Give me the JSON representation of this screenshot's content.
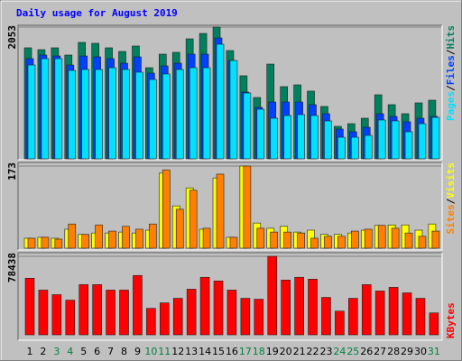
{
  "title": "Daily usage for August 2019",
  "categories": [
    "1",
    "2",
    "3",
    "4",
    "5",
    "6",
    "7",
    "8",
    "9",
    "10",
    "11",
    "12",
    "13",
    "14",
    "15",
    "16",
    "17",
    "18",
    "19",
    "20",
    "21",
    "22",
    "23",
    "24",
    "25",
    "26",
    "27",
    "28",
    "29",
    "30",
    "31"
  ],
  "category_colors": [
    "#000000",
    "#000000",
    "#008040",
    "#008040",
    "#000000",
    "#000000",
    "#000000",
    "#000000",
    "#000000",
    "#008040",
    "#008040",
    "#000000",
    "#000000",
    "#000000",
    "#000000",
    "#000000",
    "#008040",
    "#008040",
    "#000000",
    "#000000",
    "#000000",
    "#000000",
    "#000000",
    "#008040",
    "#008040",
    "#000000",
    "#000000",
    "#000000",
    "#000000",
    "#000000",
    "#008040"
  ],
  "chart_data": [
    {
      "type": "bar",
      "legend_separator": "/",
      "ylim": [
        0,
        2053
      ],
      "yticks": [
        2053
      ],
      "series": [
        {
          "name": "Hits",
          "color": "#00805c",
          "values": [
            1730,
            1701,
            1730,
            1617,
            1814,
            1800,
            1730,
            1673,
            1758,
            1420,
            1631,
            1659,
            1870,
            1954,
            2053,
            1687,
            1294,
            956,
            1476,
            1125,
            1153,
            1055,
            816,
            506,
            548,
            633,
            998,
            844,
            703,
            872,
            914
          ]
        },
        {
          "name": "Files",
          "color": "#0040ff",
          "values": [
            1561,
            1617,
            1603,
            1462,
            1603,
            1589,
            1561,
            1490,
            1589,
            1336,
            1448,
            1490,
            1631,
            1631,
            1884,
            1532,
            1040,
            801,
            886,
            886,
            886,
            844,
            703,
            464,
            422,
            492,
            703,
            661,
            577,
            633,
            661
          ]
        },
        {
          "name": "Pages",
          "color": "#00e0ff",
          "values": [
            1462,
            1561,
            1561,
            1378,
            1392,
            1392,
            1420,
            1392,
            1350,
            1237,
            1322,
            1392,
            1420,
            1420,
            1786,
            1532,
            1026,
            773,
            633,
            675,
            689,
            675,
            591,
            337,
            337,
            365,
            605,
            591,
            422,
            548,
            647
          ]
        }
      ]
    },
    {
      "type": "bar",
      "legend_separator": "/",
      "ylim": [
        0,
        173
      ],
      "yticks": [
        173
      ],
      "series": [
        {
          "name": "Visits",
          "color": "#ffff00",
          "values": [
            21,
            23,
            21,
            40,
            29,
            32,
            32,
            34,
            32,
            38,
            158,
            89,
            127,
            40,
            148,
            23,
            173,
            53,
            42,
            46,
            34,
            38,
            29,
            29,
            32,
            38,
            48,
            49,
            49,
            38,
            51
          ]
        },
        {
          "name": "Sites",
          "color": "#ff8000",
          "values": [
            21,
            23,
            19,
            51,
            29,
            49,
            36,
            46,
            40,
            51,
            165,
            82,
            122,
            42,
            156,
            23,
            173,
            42,
            34,
            34,
            32,
            21,
            25,
            25,
            36,
            40,
            48,
            42,
            32,
            25,
            36
          ]
        }
      ]
    },
    {
      "type": "bar",
      "ylim": [
        0,
        78438
      ],
      "yticks": [
        78438
      ],
      "series": [
        {
          "name": "KBytes",
          "color": "#ff0000",
          "values": [
            56544,
            44688,
            40128,
            34656,
            50160,
            50160,
            44688,
            44688,
            59280,
            26448,
            31920,
            36480,
            45600,
            57456,
            53808,
            44688,
            36480,
            35568,
            78438,
            54720,
            57456,
            55632,
            37392,
            23712,
            36480,
            50160,
            43776,
            47424,
            41952,
            36480,
            21888
          ]
        }
      ]
    }
  ]
}
